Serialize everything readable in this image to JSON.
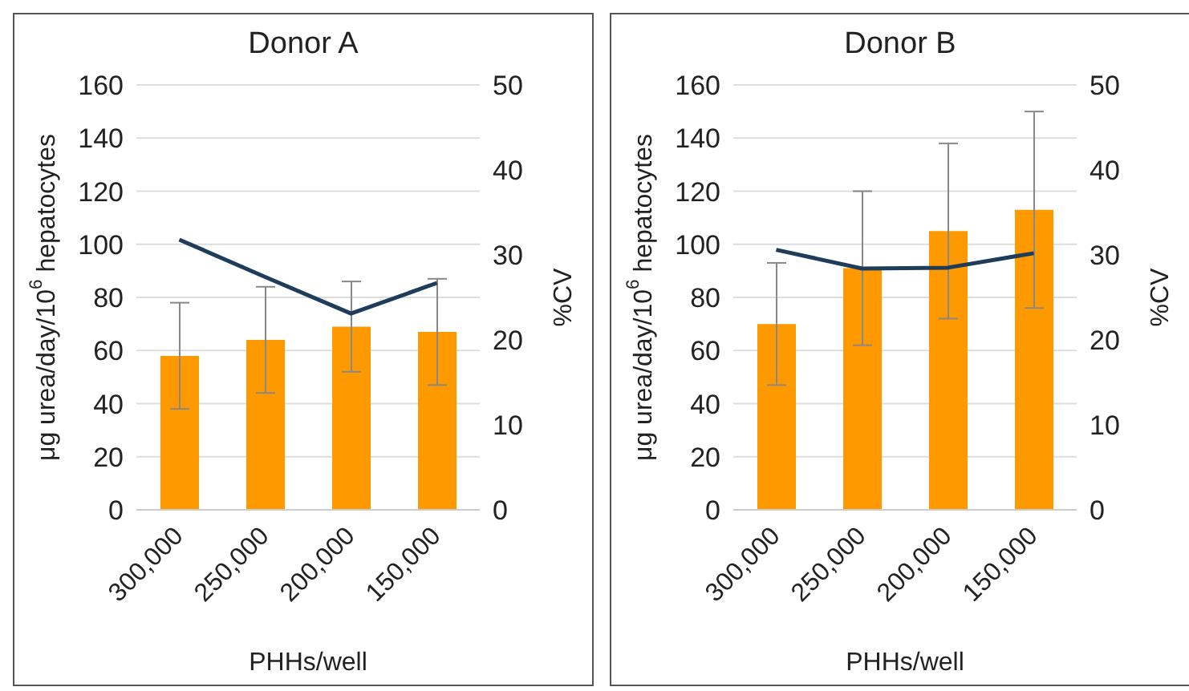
{
  "chart_data": [
    {
      "type": "bar",
      "title": "Donor A",
      "xlabel": "PHHs/well",
      "ylabel": "μg urea/day/10$^{6}$ hepatocytes",
      "y2label": "%CV",
      "categories": [
        "300,000",
        "250,000",
        "200,000",
        "150,000"
      ],
      "series": [
        {
          "color": "#ff9900",
          "values": [
            58,
            64,
            69,
            67
          ],
          "errors": [
            20,
            20,
            17,
            20
          ]
        },
        {
          "type": "line",
          "axis": "y2",
          "color": "#1f3c5a",
          "values": [
            31.8,
            27.4,
            23.1,
            26.7
          ]
        }
      ],
      "ylim": [
        0,
        160
      ],
      "yticks": [
        0,
        20,
        40,
        60,
        80,
        100,
        120,
        140,
        160
      ],
      "y2lim": [
        0,
        50
      ],
      "y2ticks": [
        0,
        10,
        20,
        30,
        40,
        50
      ],
      "grid": "y",
      "legend": false
    },
    {
      "type": "bar",
      "title": "Donor B",
      "xlabel": "PHHs/well",
      "ylabel": "μg urea/day/10$^{6}$ hepatocytes",
      "y2label": "%CV",
      "categories": [
        "300,000",
        "250,000",
        "200,000",
        "150,000"
      ],
      "series": [
        {
          "color": "#ff9900",
          "values": [
            70,
            91,
            105,
            113
          ],
          "errors": [
            23,
            29,
            33,
            37
          ]
        },
        {
          "type": "line",
          "axis": "y2",
          "color": "#1f3c5a",
          "values": [
            30.6,
            28.4,
            28.5,
            30.2
          ]
        }
      ],
      "ylim": [
        0,
        160
      ],
      "yticks": [
        0,
        20,
        40,
        60,
        80,
        100,
        120,
        140,
        160
      ],
      "y2lim": [
        0,
        50
      ],
      "y2ticks": [
        0,
        10,
        20,
        30,
        40,
        50
      ],
      "grid": "y",
      "legend": false
    }
  ]
}
